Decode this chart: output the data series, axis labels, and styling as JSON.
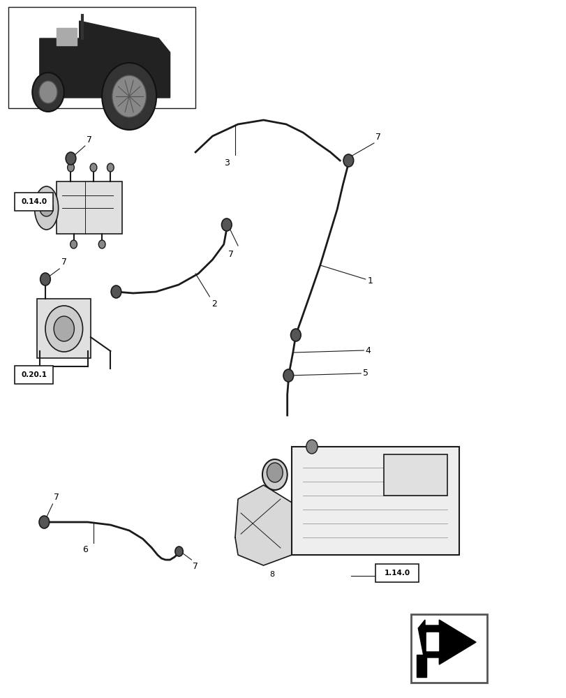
{
  "bg_color": "#ffffff",
  "line_color": "#1a1a1a",
  "fig_width": 8.12,
  "fig_height": 10.0,
  "number_fontsize": 9,
  "label_fontsize": 7.5,
  "ref_fontsize": 8
}
